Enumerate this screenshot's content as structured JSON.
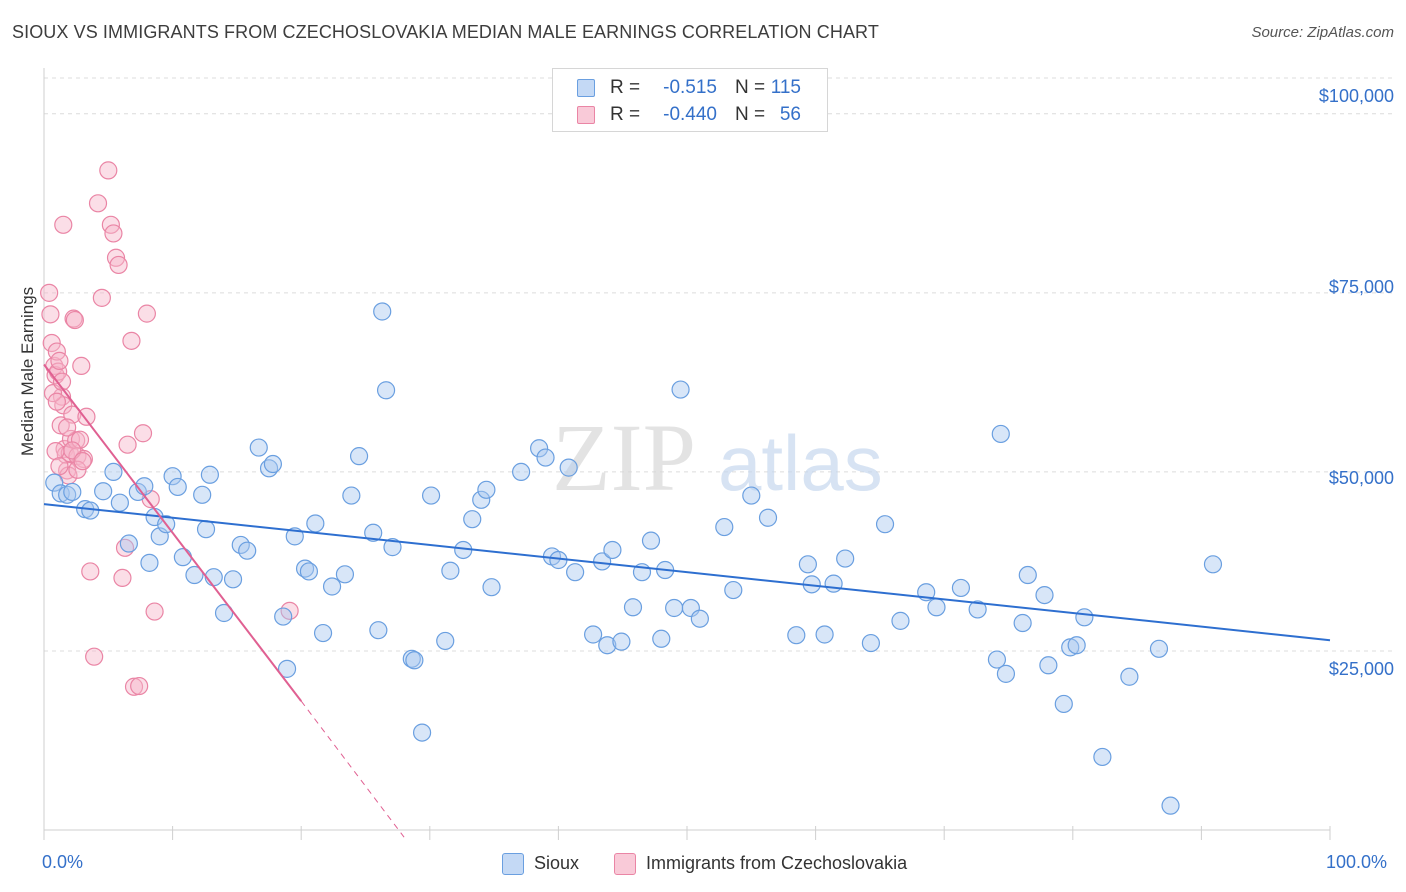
{
  "header": {
    "title": "SIOUX VS IMMIGRANTS FROM CZECHOSLOVAKIA MEDIAN MALE EARNINGS CORRELATION CHART",
    "source": "Source: ZipAtlas.com"
  },
  "watermark": {
    "zip": "ZIP",
    "atlas": "atlas"
  },
  "colors": {
    "sioux_fill": "#a9c8f0",
    "sioux_stroke": "#6a9fe0",
    "sioux_line": "#2e6fd0",
    "czech_fill": "#f7b6c9",
    "czech_stroke": "#ea85a5",
    "czech_line": "#e06092",
    "axis_text": "#3470c9",
    "grid": "#dcdcdc"
  },
  "legend": {
    "rows": [
      {
        "r_label": "R =",
        "r_value": "-0.515",
        "n_label": "N =",
        "n_value": "115"
      },
      {
        "r_label": "R =",
        "r_value": "-0.440",
        "n_label": "N =",
        "n_value": "56"
      }
    ]
  },
  "bottom_legend": {
    "sioux": "Sioux",
    "czech": "Immigrants from Czechoslovakia"
  },
  "chart_data": {
    "type": "scatter",
    "title": "SIOUX VS IMMIGRANTS FROM CZECHOSLOVAKIA MEDIAN MALE EARNINGS CORRELATION CHART",
    "xlabel": "",
    "ylabel": "Median Male Earnings",
    "xlim": [
      0,
      100
    ],
    "ylim": [
      0,
      105000
    ],
    "x_tick_labels": [
      "0.0%",
      "100.0%"
    ],
    "y_ticks": [
      25000,
      50000,
      75000,
      100000
    ],
    "y_tick_labels": [
      "$25,000",
      "$50,000",
      "$75,000",
      "$100,000"
    ],
    "series": [
      {
        "name": "Sioux",
        "r": -0.515,
        "n": 115,
        "trend": {
          "x0": 0,
          "y0": 45500,
          "x1": 100,
          "y1": 26500
        },
        "points": [
          [
            0.8,
            48500
          ],
          [
            1.3,
            47000
          ],
          [
            1.8,
            46800
          ],
          [
            2.2,
            47200
          ],
          [
            3.2,
            44800
          ],
          [
            3.6,
            44600
          ],
          [
            4.6,
            47300
          ],
          [
            5.4,
            50000
          ],
          [
            5.9,
            45700
          ],
          [
            6.6,
            40000
          ],
          [
            7.3,
            47200
          ],
          [
            7.8,
            48000
          ],
          [
            8.2,
            37300
          ],
          [
            8.6,
            43700
          ],
          [
            9.0,
            41000
          ],
          [
            9.5,
            42700
          ],
          [
            10.0,
            49400
          ],
          [
            10.4,
            47900
          ],
          [
            10.8,
            38100
          ],
          [
            11.7,
            35600
          ],
          [
            12.3,
            46800
          ],
          [
            12.6,
            42000
          ],
          [
            12.9,
            49600
          ],
          [
            13.2,
            35300
          ],
          [
            14.0,
            30300
          ],
          [
            14.7,
            35000
          ],
          [
            15.3,
            39800
          ],
          [
            15.8,
            39000
          ],
          [
            16.7,
            53400
          ],
          [
            17.5,
            50500
          ],
          [
            17.8,
            51100
          ],
          [
            18.6,
            29800
          ],
          [
            18.9,
            22500
          ],
          [
            19.5,
            41000
          ],
          [
            20.3,
            36500
          ],
          [
            20.6,
            36100
          ],
          [
            21.1,
            42800
          ],
          [
            21.7,
            27500
          ],
          [
            22.4,
            34000
          ],
          [
            23.4,
            35700
          ],
          [
            23.9,
            46700
          ],
          [
            24.5,
            52200
          ],
          [
            25.6,
            41500
          ],
          [
            26.0,
            27900
          ],
          [
            26.3,
            72400
          ],
          [
            26.6,
            61400
          ],
          [
            27.1,
            39500
          ],
          [
            28.6,
            23900
          ],
          [
            28.8,
            23700
          ],
          [
            29.4,
            13600
          ],
          [
            30.1,
            46700
          ],
          [
            31.2,
            26400
          ],
          [
            31.6,
            36200
          ],
          [
            32.6,
            39100
          ],
          [
            33.3,
            43400
          ],
          [
            34.0,
            46100
          ],
          [
            34.4,
            47500
          ],
          [
            34.8,
            33900
          ],
          [
            37.1,
            50000
          ],
          [
            38.5,
            53300
          ],
          [
            39.0,
            52000
          ],
          [
            39.5,
            38200
          ],
          [
            40.0,
            37700
          ],
          [
            40.8,
            50600
          ],
          [
            41.3,
            36000
          ],
          [
            42.7,
            27300
          ],
          [
            43.4,
            37500
          ],
          [
            43.8,
            25800
          ],
          [
            44.2,
            39100
          ],
          [
            44.9,
            26300
          ],
          [
            45.8,
            31100
          ],
          [
            46.5,
            36000
          ],
          [
            47.2,
            40400
          ],
          [
            48.0,
            26700
          ],
          [
            48.3,
            36300
          ],
          [
            49.0,
            31000
          ],
          [
            49.5,
            61500
          ],
          [
            50.3,
            31000
          ],
          [
            51.0,
            29500
          ],
          [
            52.9,
            42300
          ],
          [
            53.6,
            33500
          ],
          [
            55.0,
            46700
          ],
          [
            56.3,
            43600
          ],
          [
            58.5,
            27200
          ],
          [
            59.4,
            37100
          ],
          [
            59.7,
            34300
          ],
          [
            60.7,
            27300
          ],
          [
            61.4,
            34400
          ],
          [
            62.3,
            37900
          ],
          [
            64.3,
            26100
          ],
          [
            65.4,
            42700
          ],
          [
            66.6,
            29200
          ],
          [
            68.6,
            33200
          ],
          [
            69.4,
            31100
          ],
          [
            71.3,
            33800
          ],
          [
            72.6,
            30800
          ],
          [
            74.1,
            23800
          ],
          [
            74.4,
            55300
          ],
          [
            74.8,
            21800
          ],
          [
            76.1,
            28900
          ],
          [
            76.5,
            35600
          ],
          [
            77.8,
            32800
          ],
          [
            78.1,
            23000
          ],
          [
            79.3,
            17600
          ],
          [
            79.8,
            25500
          ],
          [
            80.3,
            25800
          ],
          [
            80.9,
            29700
          ],
          [
            82.3,
            10200
          ],
          [
            84.4,
            21400
          ],
          [
            86.7,
            25300
          ],
          [
            87.6,
            3400
          ],
          [
            90.9,
            37100
          ]
        ]
      },
      {
        "name": "Immigrants from Czechoslovakia",
        "r": -0.44,
        "n": 56,
        "trend": {
          "x0": 0,
          "y0": 65000,
          "x1": 20,
          "y1": 18000,
          "dash_x1": 28,
          "dash_y1": -1000
        },
        "points": [
          [
            0.4,
            75000
          ],
          [
            0.5,
            72000
          ],
          [
            0.6,
            68000
          ],
          [
            0.8,
            64800
          ],
          [
            0.9,
            63500
          ],
          [
            1.0,
            66800
          ],
          [
            1.1,
            64000
          ],
          [
            1.2,
            65500
          ],
          [
            1.3,
            56500
          ],
          [
            1.4,
            60500
          ],
          [
            1.5,
            59300
          ],
          [
            1.6,
            53200
          ],
          [
            1.7,
            52400
          ],
          [
            1.8,
            50200
          ],
          [
            1.9,
            49500
          ],
          [
            2.0,
            52600
          ],
          [
            2.1,
            54600
          ],
          [
            2.2,
            58000
          ],
          [
            2.3,
            71400
          ],
          [
            2.4,
            71200
          ],
          [
            2.5,
            54400
          ],
          [
            2.6,
            52200
          ],
          [
            2.8,
            54500
          ],
          [
            2.9,
            64800
          ],
          [
            3.1,
            51800
          ],
          [
            3.3,
            57700
          ],
          [
            3.6,
            36100
          ],
          [
            3.9,
            24200
          ],
          [
            4.2,
            87500
          ],
          [
            4.5,
            74300
          ],
          [
            5.0,
            92100
          ],
          [
            5.2,
            84500
          ],
          [
            5.4,
            83300
          ],
          [
            5.6,
            79900
          ],
          [
            5.8,
            78900
          ],
          [
            6.1,
            35200
          ],
          [
            6.3,
            39400
          ],
          [
            6.5,
            53800
          ],
          [
            6.8,
            68300
          ],
          [
            7.0,
            20000
          ],
          [
            7.4,
            20100
          ],
          [
            7.7,
            55400
          ],
          [
            8.0,
            72100
          ],
          [
            8.3,
            46200
          ],
          [
            8.6,
            30500
          ],
          [
            0.7,
            61000
          ],
          [
            1.0,
            59800
          ],
          [
            1.4,
            62600
          ],
          [
            1.8,
            56200
          ],
          [
            2.2,
            53000
          ],
          [
            2.6,
            50300
          ],
          [
            0.9,
            52900
          ],
          [
            1.2,
            50800
          ],
          [
            1.5,
            84500
          ],
          [
            3.0,
            51500
          ],
          [
            19.1,
            30600
          ]
        ]
      }
    ]
  }
}
